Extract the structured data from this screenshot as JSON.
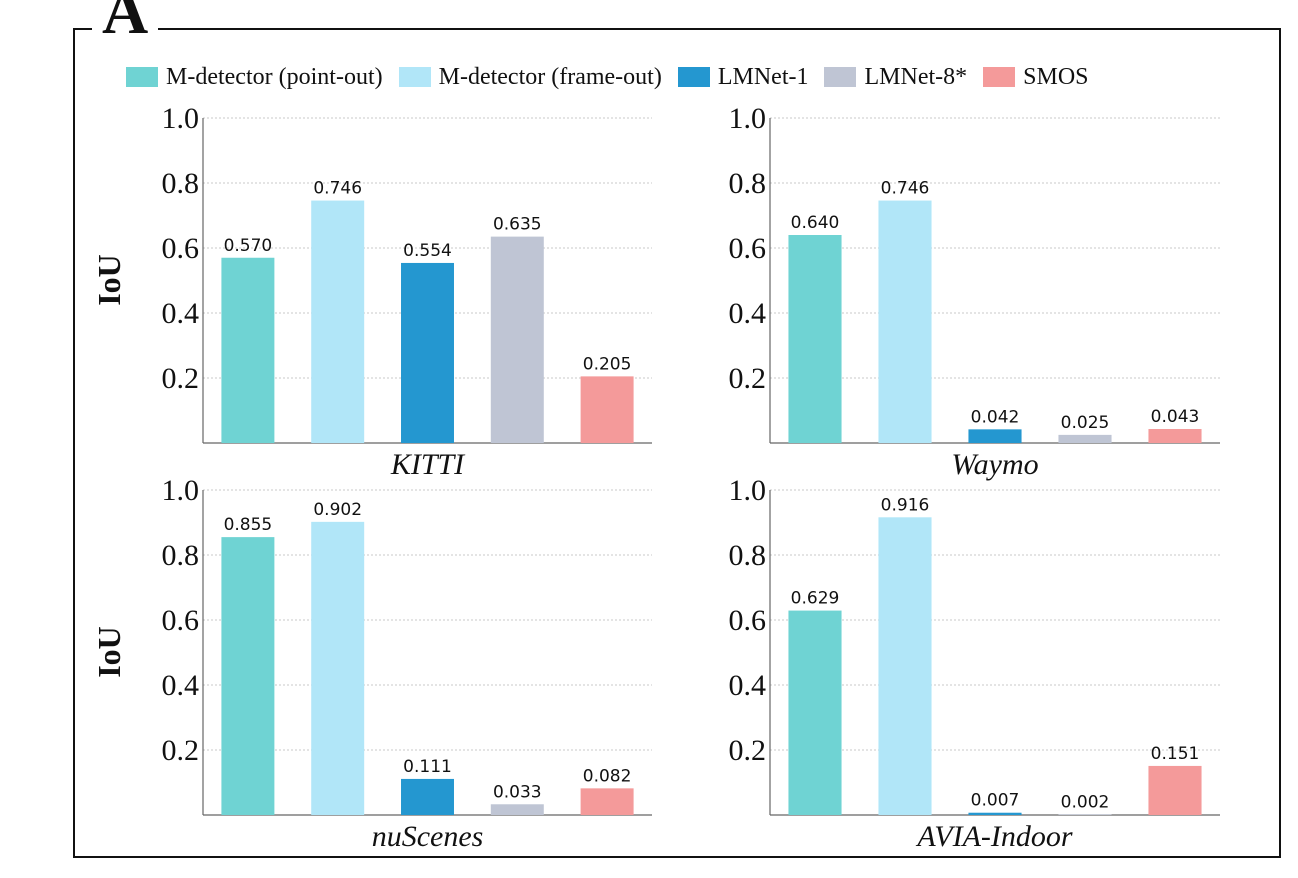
{
  "figure": {
    "panel_label": "A"
  },
  "legend": [
    {
      "label": "M-detector (point-out)",
      "color": "#6fd3d3"
    },
    {
      "label": "M-detector (frame-out)",
      "color": "#b1e6f8"
    },
    {
      "label": "LMNet-1",
      "color": "#2497d0"
    },
    {
      "label": "LMNet-8*",
      "color": "#bfc5d4"
    },
    {
      "label": "SMOS",
      "color": "#f49a9a"
    }
  ],
  "chart_data": [
    {
      "type": "bar",
      "xlabel": "KITTI",
      "ylabel": "IoU",
      "ylim": [
        0,
        1.0
      ],
      "yticks": [
        "0.2",
        "0.4",
        "0.6",
        "0.8",
        "1.0"
      ],
      "grid": true,
      "series": [
        {
          "name": "M-detector (point-out)",
          "value": 0.57,
          "label": "0.570"
        },
        {
          "name": "M-detector (frame-out)",
          "value": 0.746,
          "label": "0.746"
        },
        {
          "name": "LMNet-1",
          "value": 0.554,
          "label": "0.554"
        },
        {
          "name": "LMNet-8*",
          "value": 0.635,
          "label": "0.635"
        },
        {
          "name": "SMOS",
          "value": 0.205,
          "label": "0.205"
        }
      ]
    },
    {
      "type": "bar",
      "xlabel": "Waymo",
      "ylabel": "",
      "ylim": [
        0,
        1.0
      ],
      "yticks": [
        "0.2",
        "0.4",
        "0.6",
        "0.8",
        "1.0"
      ],
      "grid": true,
      "series": [
        {
          "name": "M-detector (point-out)",
          "value": 0.64,
          "label": "0.640"
        },
        {
          "name": "M-detector (frame-out)",
          "value": 0.746,
          "label": "0.746"
        },
        {
          "name": "LMNet-1",
          "value": 0.042,
          "label": "0.042"
        },
        {
          "name": "LMNet-8*",
          "value": 0.025,
          "label": "0.025"
        },
        {
          "name": "SMOS",
          "value": 0.043,
          "label": "0.043"
        }
      ]
    },
    {
      "type": "bar",
      "xlabel": "nuScenes",
      "ylabel": "IoU",
      "ylim": [
        0,
        1.0
      ],
      "yticks": [
        "0.2",
        "0.4",
        "0.6",
        "0.8",
        "1.0"
      ],
      "grid": true,
      "series": [
        {
          "name": "M-detector (point-out)",
          "value": 0.855,
          "label": "0.855"
        },
        {
          "name": "M-detector (frame-out)",
          "value": 0.902,
          "label": "0.902"
        },
        {
          "name": "LMNet-1",
          "value": 0.111,
          "label": "0.111"
        },
        {
          "name": "LMNet-8*",
          "value": 0.033,
          "label": "0.033"
        },
        {
          "name": "SMOS",
          "value": 0.082,
          "label": "0.082"
        }
      ]
    },
    {
      "type": "bar",
      "xlabel": "AVIA-Indoor",
      "ylabel": "",
      "ylim": [
        0,
        1.0
      ],
      "yticks": [
        "0.2",
        "0.4",
        "0.6",
        "0.8",
        "1.0"
      ],
      "grid": true,
      "series": [
        {
          "name": "M-detector (point-out)",
          "value": 0.629,
          "label": "0.629"
        },
        {
          "name": "M-detector (frame-out)",
          "value": 0.916,
          "label": "0.916"
        },
        {
          "name": "LMNet-1",
          "value": 0.007,
          "label": "0.007"
        },
        {
          "name": "LMNet-8*",
          "value": 0.002,
          "label": "0.002"
        },
        {
          "name": "SMOS",
          "value": 0.151,
          "label": "0.151"
        }
      ]
    }
  ]
}
